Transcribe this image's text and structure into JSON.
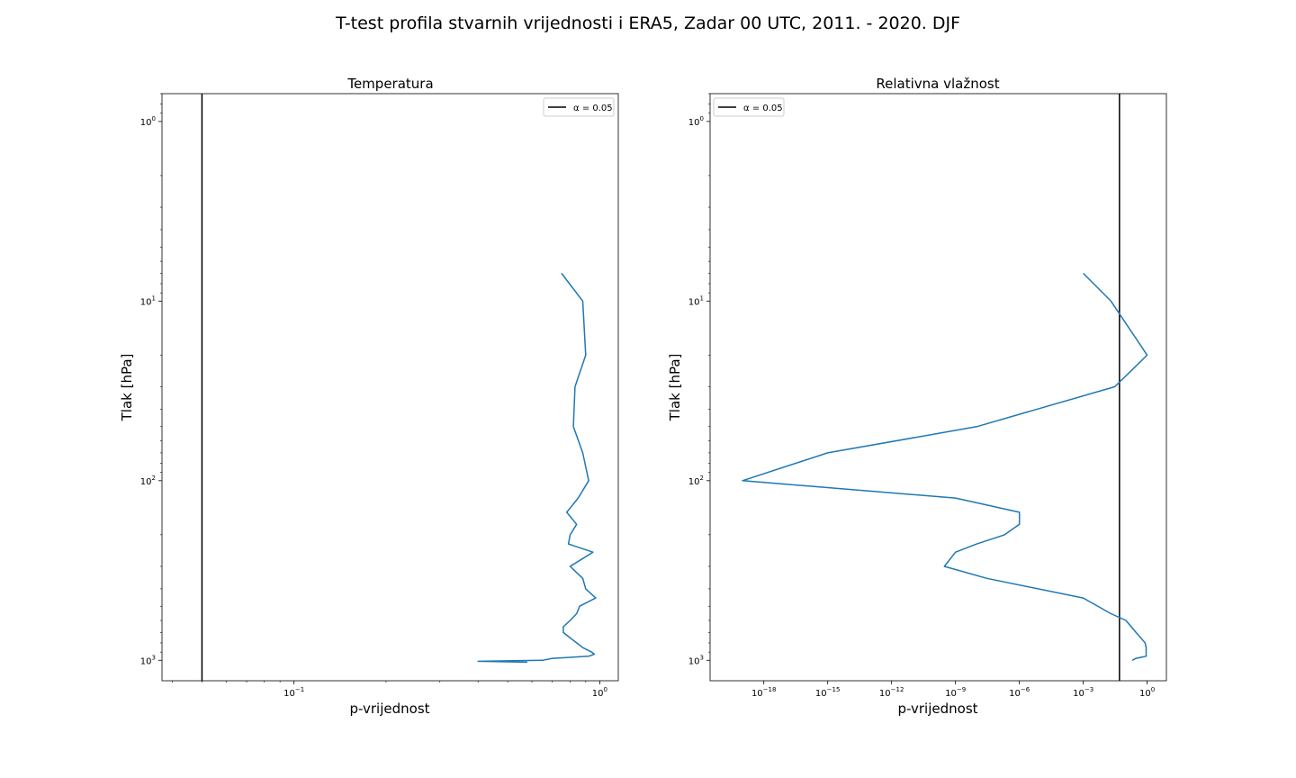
{
  "figure": {
    "suptitle": "T-test profila stvarnih vrijednosti i ERA5, Zadar 00 UTC, 2011. - 2020. DJF"
  },
  "chart_data": [
    {
      "type": "line",
      "title": "Temperatura",
      "xlabel": "p-vrijednost",
      "ylabel": "Tlak [hPa]",
      "x_scale": "log",
      "y_scale": "log",
      "y_inverted": true,
      "xlim": [
        0.037,
        1.15
      ],
      "ylim": [
        1300,
        0.7
      ],
      "x_ticks": [
        {
          "value": 0.1,
          "base": "10",
          "exp": "−1"
        },
        {
          "value": 1,
          "base": "10",
          "exp": "0"
        }
      ],
      "y_ticks": [
        {
          "value": 1,
          "base": "10",
          "exp": "0"
        },
        {
          "value": 10,
          "base": "10",
          "exp": "1"
        },
        {
          "value": 100,
          "base": "10",
          "exp": "2"
        },
        {
          "value": 1000,
          "base": "10",
          "exp": "3"
        }
      ],
      "legend": {
        "label": "α = 0.05",
        "position": "upper right"
      },
      "reference_line": {
        "x": 0.05,
        "color": "#000000"
      },
      "series": [
        {
          "color": "#1f77b4",
          "points": [
            [
              0.75,
              7
            ],
            [
              0.88,
              10
            ],
            [
              0.9,
              20
            ],
            [
              0.83,
              30
            ],
            [
              0.82,
              50
            ],
            [
              0.88,
              70
            ],
            [
              0.92,
              100
            ],
            [
              0.85,
              125
            ],
            [
              0.78,
              150
            ],
            [
              0.84,
              175
            ],
            [
              0.8,
              200
            ],
            [
              0.79,
              225
            ],
            [
              0.95,
              250
            ],
            [
              0.8,
              300
            ],
            [
              0.88,
              350
            ],
            [
              0.9,
              400
            ],
            [
              0.97,
              450
            ],
            [
              0.86,
              500
            ],
            [
              0.84,
              550
            ],
            [
              0.8,
              600
            ],
            [
              0.76,
              650
            ],
            [
              0.76,
              700
            ],
            [
              0.8,
              750
            ],
            [
              0.84,
              800
            ],
            [
              0.88,
              850
            ],
            [
              0.94,
              900
            ],
            [
              0.96,
              925
            ],
            [
              0.92,
              950
            ],
            [
              0.7,
              975
            ],
            [
              0.65,
              1000
            ],
            [
              0.4,
              1013
            ],
            [
              0.58,
              1025
            ]
          ]
        }
      ]
    },
    {
      "type": "line",
      "title": "Relativna vlažnost",
      "xlabel": "p-vrijednost",
      "ylabel": "Tlak [hPa]",
      "x_scale": "log",
      "y_scale": "log",
      "y_inverted": true,
      "xlim": [
        3e-21,
        8
      ],
      "ylim": [
        1300,
        0.7
      ],
      "x_ticks": [
        {
          "value": 1e-18,
          "base": "10",
          "exp": "−18"
        },
        {
          "value": 1e-15,
          "base": "10",
          "exp": "−15"
        },
        {
          "value": 1e-12,
          "base": "10",
          "exp": "−12"
        },
        {
          "value": 1e-09,
          "base": "10",
          "exp": "−9"
        },
        {
          "value": 1e-06,
          "base": "10",
          "exp": "−6"
        },
        {
          "value": 0.001,
          "base": "10",
          "exp": "−3"
        },
        {
          "value": 1,
          "base": "10",
          "exp": "0"
        }
      ],
      "y_ticks": [
        {
          "value": 1,
          "base": "10",
          "exp": "0"
        },
        {
          "value": 10,
          "base": "10",
          "exp": "1"
        },
        {
          "value": 100,
          "base": "10",
          "exp": "2"
        },
        {
          "value": 1000,
          "base": "10",
          "exp": "3"
        }
      ],
      "legend": {
        "label": "α = 0.05",
        "position": "upper left"
      },
      "reference_line": {
        "x": 0.05,
        "color": "#000000"
      },
      "series": [
        {
          "color": "#1f77b4",
          "points": [
            [
              0.001,
              7
            ],
            [
              0.02,
              10
            ],
            [
              1.0,
              20
            ],
            [
              0.03,
              30
            ],
            [
              1e-08,
              50
            ],
            [
              1e-15,
              70
            ],
            [
              1e-19,
              100
            ],
            [
              1e-09,
              125
            ],
            [
              1e-06,
              150
            ],
            [
              1e-06,
              175
            ],
            [
              2e-07,
              200
            ],
            [
              1e-08,
              225
            ],
            [
              1e-09,
              250
            ],
            [
              3e-10,
              300
            ],
            [
              3e-08,
              350
            ],
            [
              0.001,
              450
            ],
            [
              0.02,
              550
            ],
            [
              0.1,
              600
            ],
            [
              0.3,
              700
            ],
            [
              0.8,
              800
            ],
            [
              0.9,
              850
            ],
            [
              0.9,
              950
            ],
            [
              0.3,
              975
            ],
            [
              0.2,
              1000
            ]
          ]
        }
      ]
    }
  ]
}
